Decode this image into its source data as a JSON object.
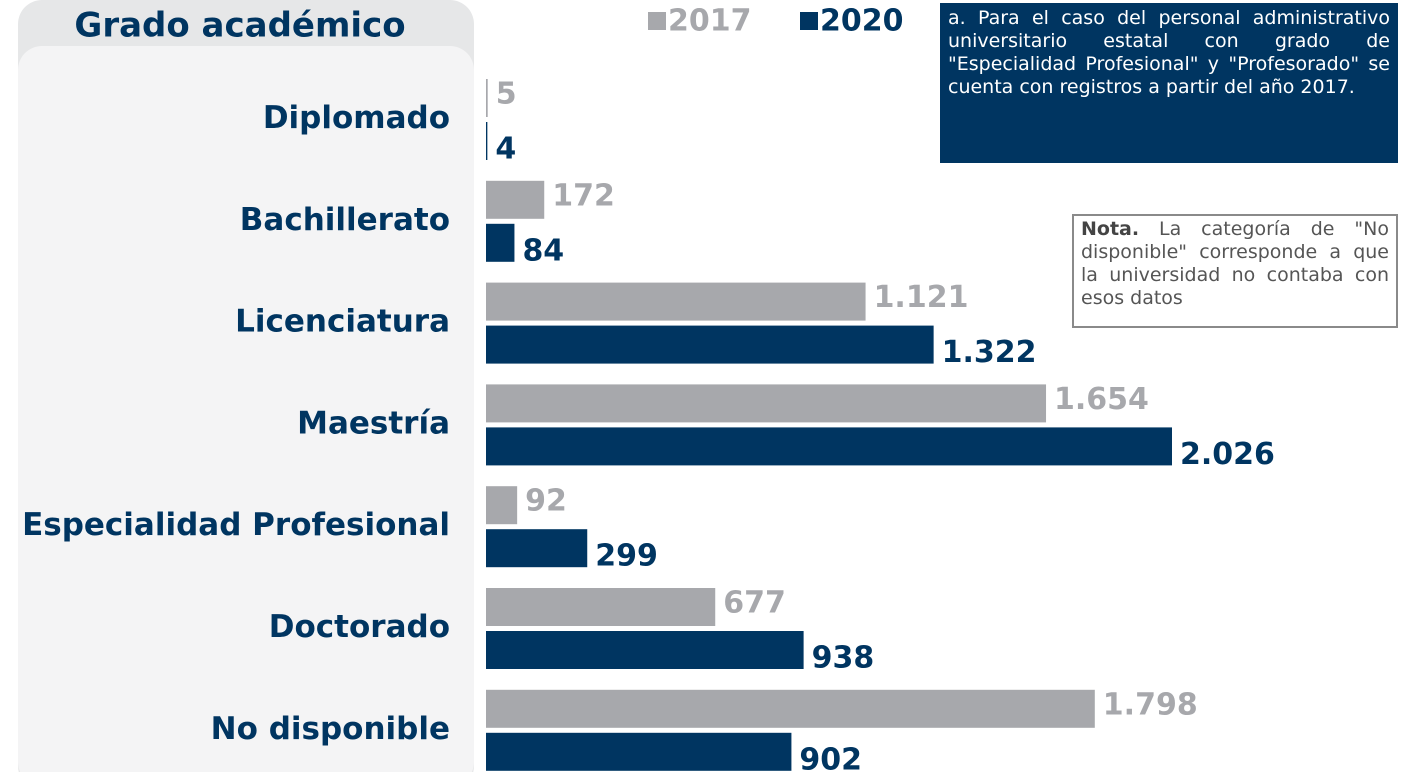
{
  "chart_data": {
    "type": "bar",
    "orientation": "horizontal",
    "title": "Grado académico",
    "categories": [
      "Diplomado",
      "Bachillerato",
      "Licenciatura",
      "Maestría",
      "Especialidad Profesional",
      "Doctorado",
      "No disponible"
    ],
    "series": [
      {
        "name": "2017",
        "color": "#a7a8ac",
        "values": [
          5,
          172,
          1121,
          1654,
          92,
          677,
          1798
        ],
        "value_labels": [
          "5",
          "172",
          "1.121",
          "1.654",
          "92",
          "677",
          "1.798"
        ]
      },
      {
        "name": "2020",
        "color": "#003561",
        "values": [
          4,
          84,
          1322,
          2026,
          299,
          938,
          902
        ],
        "value_labels": [
          "4",
          "84",
          "1.322",
          "2.026",
          "299",
          "938",
          "902"
        ]
      }
    ],
    "footnote": "a. Para el caso del personal administrativo universitario estatal con grado de \"Especialidad Profesional\" y \"Profesorado\" se cuenta con registros a partir del año 2017.",
    "note": {
      "label": "Nota.",
      "text": "La categoría de \"No disponible\" corresponde a que la universidad no contaba con esos datos"
    }
  }
}
